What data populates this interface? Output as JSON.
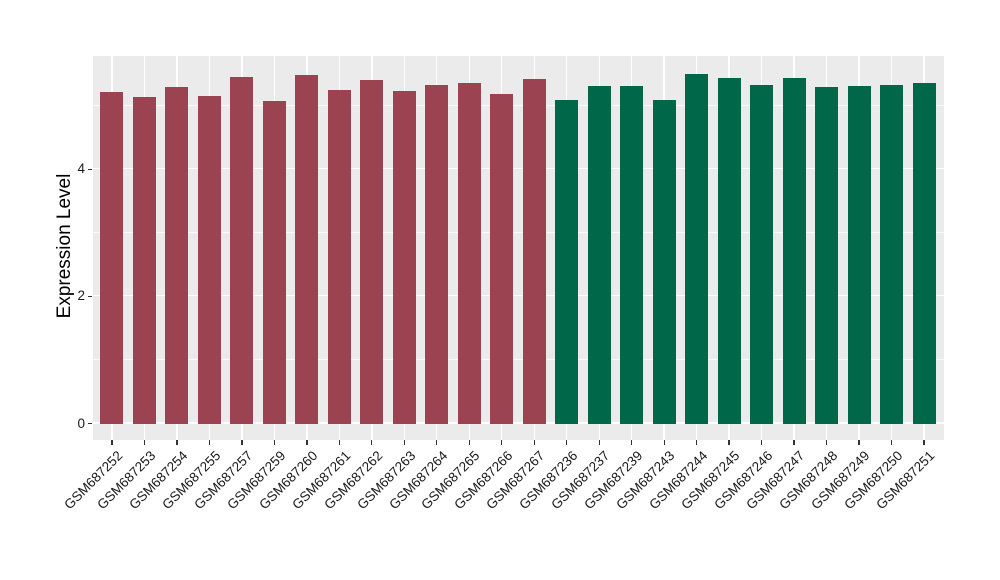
{
  "chart_data": {
    "type": "bar",
    "title": "",
    "xlabel": "",
    "ylabel": "Expression Level",
    "yticks": [
      0,
      2,
      4
    ],
    "yticks_minor": [
      1,
      3,
      5
    ],
    "ylim": [
      0,
      5.78
    ],
    "legend": "none",
    "grid": "white major and minor gridlines on gray panel",
    "layout": {
      "panel_bg": "#EBEBEB",
      "grid_color": "#FFFFFF",
      "x_label_angle_deg": 45
    },
    "group_colors": {
      "group1": "#9C4351",
      "group2": "#006849"
    },
    "bars": [
      {
        "sample": "GSM687252",
        "value": 5.22,
        "group": "group1"
      },
      {
        "sample": "GSM687253",
        "value": 5.14,
        "group": "group1"
      },
      {
        "sample": "GSM687254",
        "value": 5.29,
        "group": "group1"
      },
      {
        "sample": "GSM687255",
        "value": 5.15,
        "group": "group1"
      },
      {
        "sample": "GSM687257",
        "value": 5.46,
        "group": "group1"
      },
      {
        "sample": "GSM687259",
        "value": 5.07,
        "group": "group1"
      },
      {
        "sample": "GSM687260",
        "value": 5.48,
        "group": "group1"
      },
      {
        "sample": "GSM687261",
        "value": 5.25,
        "group": "group1"
      },
      {
        "sample": "GSM687262",
        "value": 5.41,
        "group": "group1"
      },
      {
        "sample": "GSM687263",
        "value": 5.24,
        "group": "group1"
      },
      {
        "sample": "GSM687264",
        "value": 5.33,
        "group": "group1"
      },
      {
        "sample": "GSM687265",
        "value": 5.36,
        "group": "group1"
      },
      {
        "sample": "GSM687266",
        "value": 5.18,
        "group": "group1"
      },
      {
        "sample": "GSM687267",
        "value": 5.42,
        "group": "group1"
      },
      {
        "sample": "GSM687236",
        "value": 5.09,
        "group": "group2"
      },
      {
        "sample": "GSM687237",
        "value": 5.31,
        "group": "group2"
      },
      {
        "sample": "GSM687239",
        "value": 5.31,
        "group": "group2"
      },
      {
        "sample": "GSM687243",
        "value": 5.09,
        "group": "group2"
      },
      {
        "sample": "GSM687244",
        "value": 5.5,
        "group": "group2"
      },
      {
        "sample": "GSM687245",
        "value": 5.44,
        "group": "group2"
      },
      {
        "sample": "GSM687246",
        "value": 5.33,
        "group": "group2"
      },
      {
        "sample": "GSM687247",
        "value": 5.43,
        "group": "group2"
      },
      {
        "sample": "GSM687248",
        "value": 5.3,
        "group": "group2"
      },
      {
        "sample": "GSM687249",
        "value": 5.31,
        "group": "group2"
      },
      {
        "sample": "GSM687250",
        "value": 5.33,
        "group": "group2"
      },
      {
        "sample": "GSM687251",
        "value": 5.36,
        "group": "group2"
      }
    ]
  }
}
